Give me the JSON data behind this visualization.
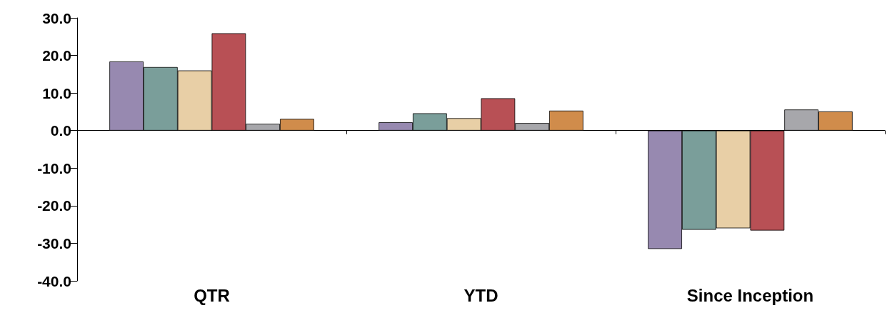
{
  "chart_data": {
    "type": "bar",
    "categories": [
      "QTR",
      "YTD",
      "Since Inception"
    ],
    "series": [
      {
        "color": "#9789b0",
        "values": [
          18.4,
          2.2,
          -31.5
        ]
      },
      {
        "color": "#7a9e9a",
        "values": [
          16.9,
          4.6,
          -26.4
        ]
      },
      {
        "color": "#e8cfa6",
        "values": [
          16.0,
          3.3,
          -26.0
        ]
      },
      {
        "color": "#b85055",
        "values": [
          25.9,
          8.6,
          -26.6
        ]
      },
      {
        "color": "#a7a7ab",
        "values": [
          1.8,
          2.0,
          5.6
        ]
      },
      {
        "color": "#d08c4b",
        "values": [
          3.1,
          5.3,
          5.1
        ]
      }
    ],
    "ylim": [
      -40,
      30
    ],
    "yticks": [
      {
        "value": -40,
        "label": "-40.0"
      },
      {
        "value": -30,
        "label": "-30.0"
      },
      {
        "value": -20,
        "label": "-20.0"
      },
      {
        "value": -10,
        "label": "-10.0"
      },
      {
        "value": 0,
        "label": "0.0"
      },
      {
        "value": 10,
        "label": "10.0"
      },
      {
        "value": 20,
        "label": "20.0"
      },
      {
        "value": 30,
        "label": "30.0"
      }
    ],
    "tick_labels": "xy"
  }
}
